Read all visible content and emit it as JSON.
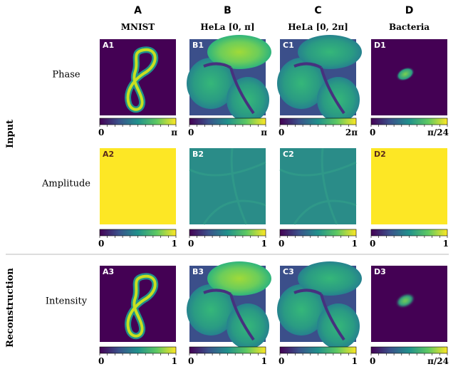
{
  "columns": [
    {
      "letter": "A",
      "title": "MNIST"
    },
    {
      "letter": "B",
      "title": "HeLa [0, π]"
    },
    {
      "letter": "C",
      "title": "HeLa [0, 2π]"
    },
    {
      "letter": "D",
      "title": "Bacteria"
    }
  ],
  "groups": [
    "Input",
    "Reconstruction"
  ],
  "row_labels": [
    "Phase",
    "Amplitude",
    "Intensity"
  ],
  "panels": [
    [
      "A1",
      "B1",
      "C1",
      "D1"
    ],
    [
      "A2",
      "B2",
      "C2",
      "D2"
    ],
    [
      "A3",
      "B3",
      "C3",
      "D3"
    ]
  ],
  "colorbars": [
    [
      [
        "0",
        "π"
      ],
      [
        "0",
        "π"
      ],
      [
        "0",
        "2π"
      ],
      [
        "0",
        "π/24"
      ]
    ],
    [
      [
        "0",
        "1"
      ],
      [
        "0",
        "1"
      ],
      [
        "0",
        "1"
      ],
      [
        "0",
        "1"
      ]
    ],
    [
      [
        "0",
        "1"
      ],
      [
        "0",
        "1"
      ],
      [
        "0",
        "1"
      ],
      [
        "0",
        "π/24"
      ]
    ]
  ]
}
